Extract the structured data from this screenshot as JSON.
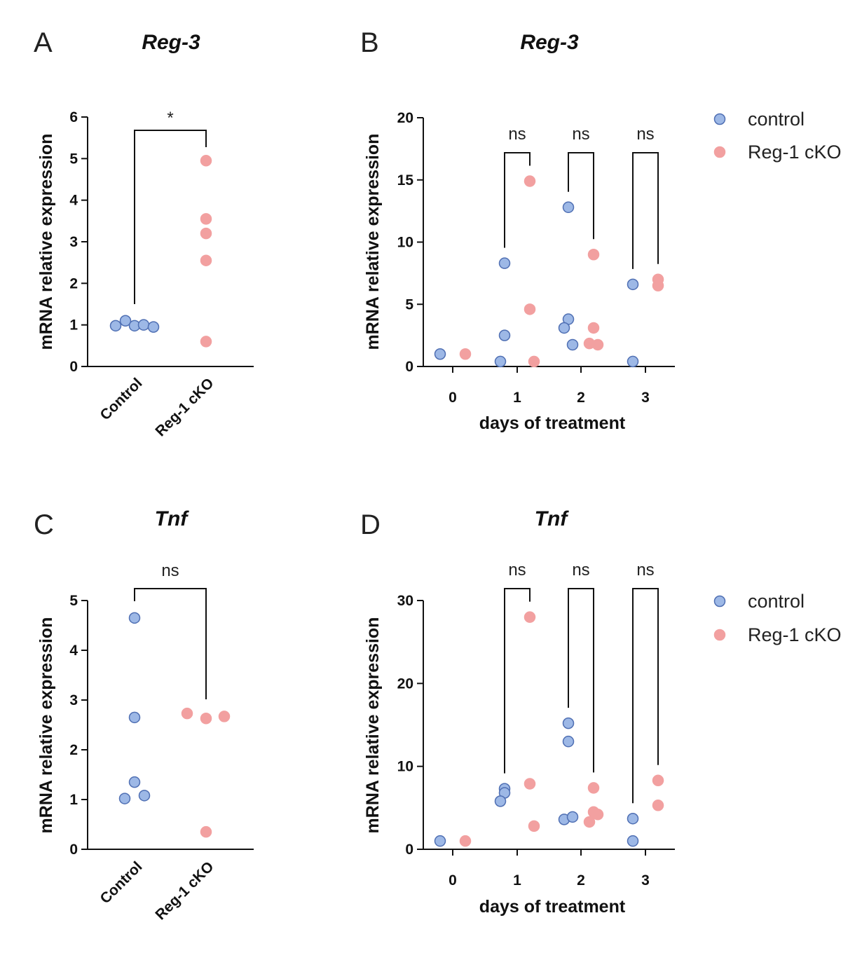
{
  "colors": {
    "control_fill": "#9db8e6",
    "control_stroke": "#4f6fb3",
    "cko_fill": "#f2a0a0",
    "cko_stroke": "#f2a0a0"
  },
  "legend": {
    "control": "control",
    "cko": "Reg-1 cKO"
  },
  "chart_data": [
    {
      "panel": "A",
      "title": "Reg-3",
      "type": "scatter",
      "ylabel": "mRNA relative expression",
      "xlabel": "",
      "ylim": [
        0,
        6
      ],
      "yticks": [
        0,
        1,
        2,
        3,
        4,
        5,
        6
      ],
      "categories": [
        "Control",
        "Reg-1 cKO"
      ],
      "series": [
        {
          "name": "Control",
          "key": "control",
          "values": [
            0.98,
            1.1,
            0.98,
            1.0,
            0.95
          ]
        },
        {
          "name": "Reg-1 cKO",
          "key": "cko",
          "values": [
            4.95,
            3.55,
            3.2,
            2.55,
            0.6
          ]
        }
      ],
      "comparisons": [
        {
          "label": "*",
          "from": "Control",
          "to": "Reg-1 cKO"
        }
      ]
    },
    {
      "panel": "B",
      "title": "Reg-3",
      "type": "scatter",
      "ylabel": "mRNA relative expression",
      "xlabel": "days of treatment",
      "ylim": [
        0,
        20
      ],
      "yticks": [
        0,
        5,
        10,
        15,
        20
      ],
      "x": [
        0,
        1,
        2,
        3
      ],
      "series": [
        {
          "name": "control",
          "key": "control",
          "points": [
            [
              0,
              1.0
            ],
            [
              1,
              8.3
            ],
            [
              1,
              2.5
            ],
            [
              1,
              0.4
            ],
            [
              2,
              12.8
            ],
            [
              2,
              3.8
            ],
            [
              2,
              3.1
            ],
            [
              2,
              1.75
            ],
            [
              3,
              6.6
            ],
            [
              3,
              0.4
            ]
          ]
        },
        {
          "name": "Reg-1 cKO",
          "key": "cko",
          "points": [
            [
              0,
              1.0
            ],
            [
              1,
              14.9
            ],
            [
              1,
              4.6
            ],
            [
              1,
              0.4
            ],
            [
              2,
              9.0
            ],
            [
              2,
              3.1
            ],
            [
              2,
              1.75
            ],
            [
              2,
              1.85
            ],
            [
              3,
              6.5
            ],
            [
              3,
              7.0
            ]
          ]
        }
      ],
      "comparisons": [
        {
          "day": 1,
          "label": "ns"
        },
        {
          "day": 2,
          "label": "ns"
        },
        {
          "day": 3,
          "label": "ns"
        }
      ]
    },
    {
      "panel": "C",
      "title": "Tnf",
      "type": "scatter",
      "ylabel": "mRNA relative expression",
      "xlabel": "",
      "ylim": [
        0,
        5
      ],
      "yticks": [
        0,
        1,
        2,
        3,
        4,
        5
      ],
      "categories": [
        "Control",
        "Reg-1 cKO"
      ],
      "series": [
        {
          "name": "Control",
          "key": "control",
          "values": [
            4.65,
            2.65,
            1.35,
            1.08,
            1.02
          ]
        },
        {
          "name": "Reg-1 cKO",
          "key": "cko",
          "values": [
            2.73,
            2.63,
            2.67,
            0.35
          ]
        }
      ],
      "comparisons": [
        {
          "label": "ns",
          "from": "Control",
          "to": "Reg-1 cKO"
        }
      ]
    },
    {
      "panel": "D",
      "title": "Tnf",
      "type": "scatter",
      "ylabel": "mRNA relative expression",
      "xlabel": "days of treatment",
      "ylim": [
        0,
        30
      ],
      "yticks": [
        0,
        10,
        20,
        30
      ],
      "x": [
        0,
        1,
        2,
        3
      ],
      "series": [
        {
          "name": "control",
          "key": "control",
          "points": [
            [
              0,
              1.0
            ],
            [
              1,
              7.3
            ],
            [
              1,
              6.8
            ],
            [
              1,
              5.8
            ],
            [
              2,
              15.2
            ],
            [
              2,
              13.0
            ],
            [
              2,
              3.6
            ],
            [
              2,
              3.9
            ],
            [
              3,
              3.7
            ],
            [
              3,
              1.0
            ]
          ]
        },
        {
          "name": "Reg-1 cKO",
          "key": "cko",
          "points": [
            [
              0,
              1.0
            ],
            [
              1,
              28.0
            ],
            [
              1,
              7.9
            ],
            [
              1,
              2.8
            ],
            [
              2,
              7.4
            ],
            [
              2,
              4.5
            ],
            [
              2,
              4.2
            ],
            [
              2,
              3.3
            ],
            [
              3,
              8.3
            ],
            [
              3,
              5.3
            ]
          ]
        }
      ],
      "comparisons": [
        {
          "day": 1,
          "label": "ns"
        },
        {
          "day": 2,
          "label": "ns"
        },
        {
          "day": 3,
          "label": "ns"
        }
      ]
    }
  ]
}
